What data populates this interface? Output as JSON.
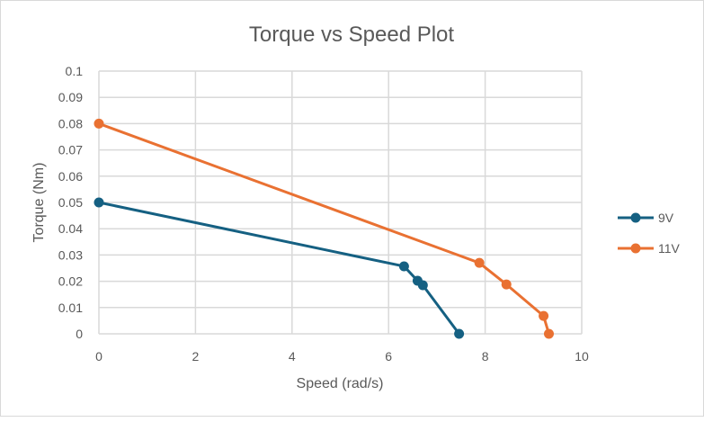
{
  "chart_data": {
    "type": "line",
    "title": "Torque vs Speed Plot",
    "xlabel": "Speed (rad/s)",
    "ylabel": "Torque (Nm)",
    "xlim": [
      0,
      10
    ],
    "ylim": [
      0,
      0.1
    ],
    "xticks": [
      "0",
      "2",
      "4",
      "6",
      "8",
      "10"
    ],
    "yticks": [
      "0",
      "0.01",
      "0.02",
      "0.03",
      "0.04",
      "0.05",
      "0.06",
      "0.07",
      "0.08",
      "0.09",
      "0.1"
    ],
    "grid": true,
    "legend_position": "right",
    "series": [
      {
        "name": "9V",
        "color": "#156082",
        "x": [
          0,
          6.32,
          6.6,
          6.71,
          7.46
        ],
        "y": [
          0.05,
          0.0257,
          0.0202,
          0.0185,
          0
        ]
      },
      {
        "name": "11V",
        "color": "#E97132",
        "x": [
          0,
          7.88,
          8.44,
          9.21,
          9.32
        ],
        "y": [
          0.08,
          0.027,
          0.0188,
          0.0068,
          0
        ]
      }
    ]
  }
}
